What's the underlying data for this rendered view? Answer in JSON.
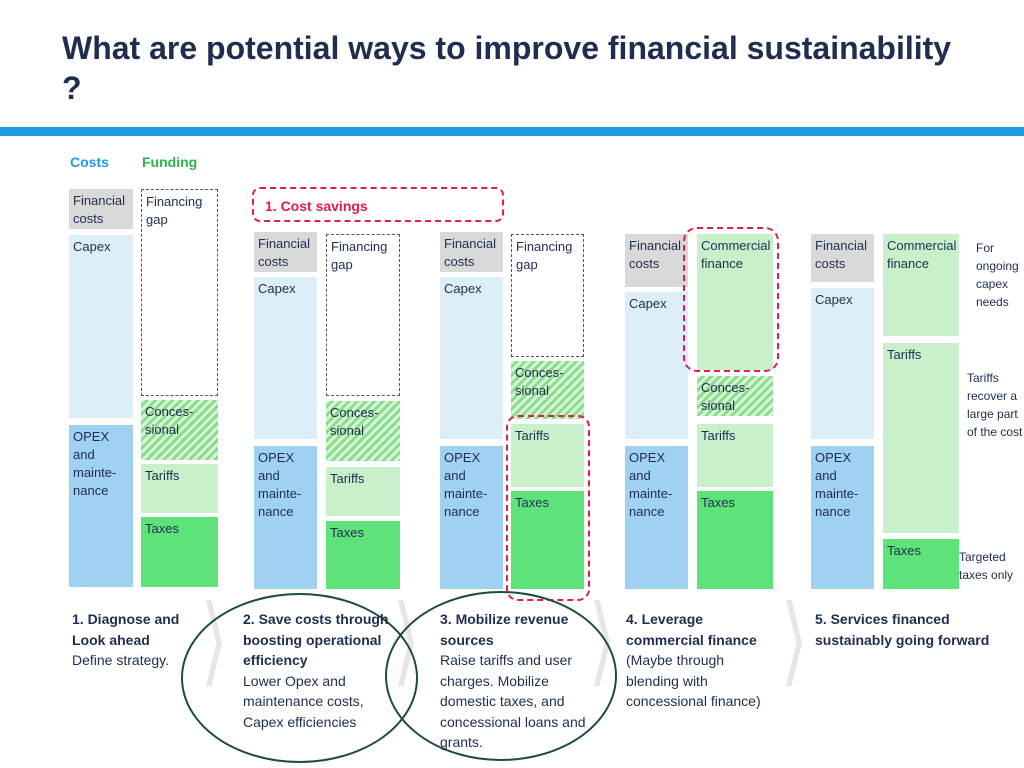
{
  "title": "What are potential ways to improve financial sustainability ?",
  "legend": {
    "costs": "Costs",
    "funding": "Funding"
  },
  "labels": {
    "financial_costs": "Financial costs",
    "capex": "Capex",
    "opex": "OPEX and mainte- nance",
    "financing_gap": "Financing gap",
    "concessional": "Conces- sional",
    "tariffs": "Tariffs",
    "taxes": "Taxes",
    "commercial_finance": "Commercial finance"
  },
  "cost_savings_tag": "1. Cost savings",
  "notes": {
    "ongoing_capex": "For ongoing capex needs",
    "tariffs_recover": "Tariffs recover a large part of the cost",
    "targeted_taxes": "Targeted taxes only"
  },
  "steps": [
    {
      "heading": "1. Diagnose and Look ahead",
      "body": "Define strategy."
    },
    {
      "heading": "2. Save costs through boosting operational efficiency",
      "body": "Lower Opex and maintenance costs, Capex efficiencies"
    },
    {
      "heading": "3. Mobilize revenue sources",
      "body": "Raise tariffs and user charges. Mobilize domestic taxes, and concessional loans and grants."
    },
    {
      "heading": "4. Leverage commercial finance",
      "body": "(Maybe through blending with concessional finance)"
    },
    {
      "heading": "5. Services financed sustainably going forward",
      "body": ""
    }
  ],
  "colors": {
    "title": "#1f2d4e",
    "accent_bar": "#1c9be0",
    "costs_header": "#1c9be0",
    "funding_header": "#2fb34a",
    "highlight": "#e11d48",
    "oval": "#1a4d3e"
  }
}
